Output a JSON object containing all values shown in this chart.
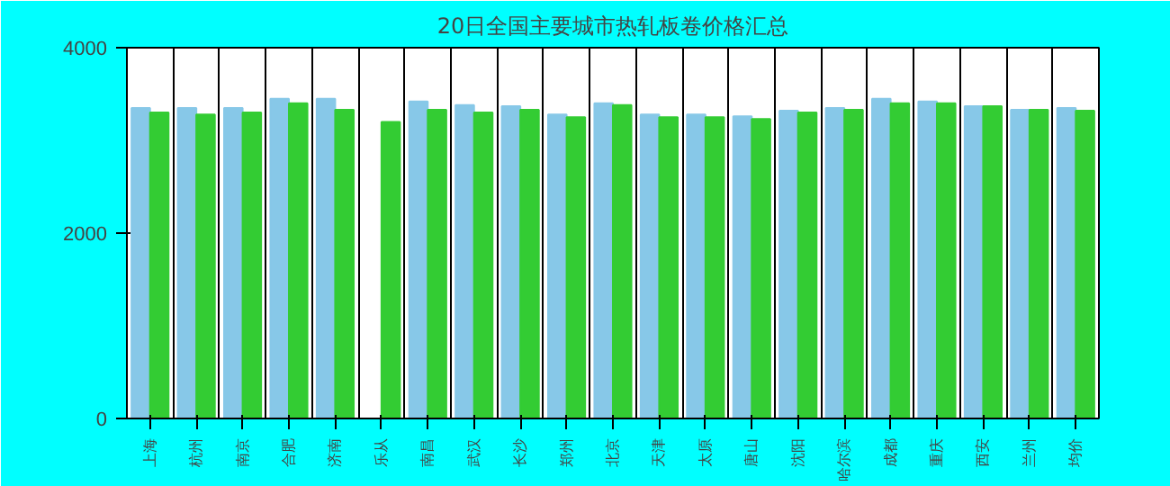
{
  "chart_data": {
    "type": "bar",
    "title": "20日全国主要城市热轧板卷价格汇总",
    "categories": [
      "上海",
      "杭州",
      "南京",
      "合肥",
      "济南",
      "乐从",
      "南昌",
      "武汉",
      "长沙",
      "郑州",
      "北京",
      "天津",
      "太原",
      "唐山",
      "沈阳",
      "哈尔滨",
      "成都",
      "重庆",
      "西安",
      "兰州",
      "均价"
    ],
    "series": [
      {
        "color": "#87c8e8",
        "values": [
          3350,
          3350,
          3350,
          3450,
          3450,
          null,
          3420,
          3380,
          3370,
          3280,
          3400,
          3280,
          3280,
          3260,
          3320,
          3350,
          3450,
          3420,
          3370,
          3330,
          3350
        ]
      },
      {
        "color": "#33cc33",
        "values": [
          3300,
          3280,
          3300,
          3400,
          3330,
          3200,
          3330,
          3300,
          3330,
          3250,
          3380,
          3250,
          3250,
          3230,
          3300,
          3330,
          3400,
          3400,
          3370,
          3330,
          3320
        ]
      }
    ],
    "ylim": [
      0,
      4000
    ],
    "yticks": [
      0,
      2000,
      4000
    ],
    "grid": "x"
  }
}
